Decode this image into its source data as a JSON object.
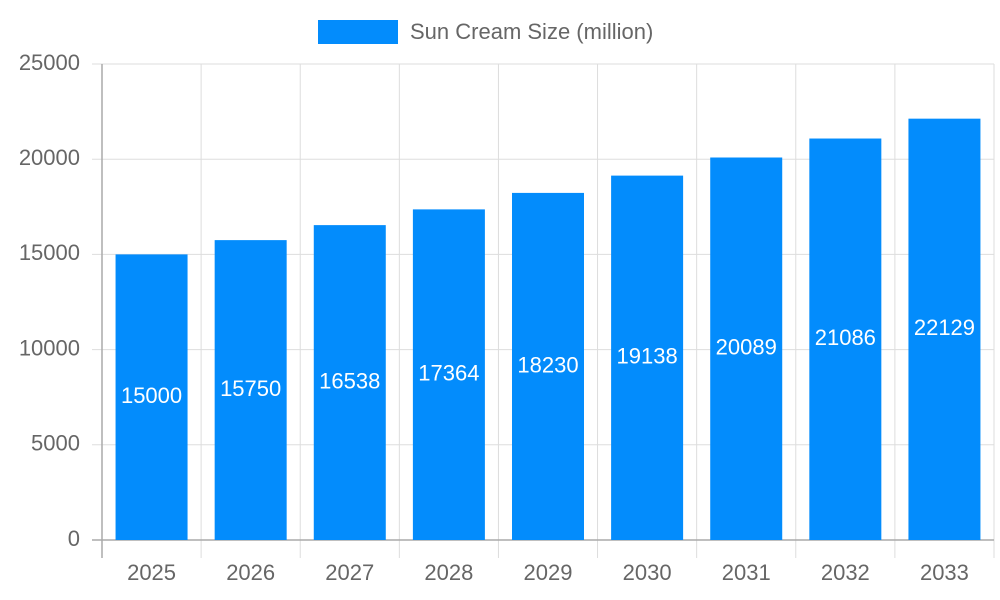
{
  "chart_data": {
    "type": "bar",
    "categories": [
      "2025",
      "2026",
      "2027",
      "2028",
      "2029",
      "2030",
      "2031",
      "2032",
      "2033"
    ],
    "series": [
      {
        "name": "Sun Cream Size (million)",
        "color": "#038cfc",
        "values": [
          15000,
          15750,
          16538,
          17364,
          18230,
          19138,
          20089,
          21086,
          22129
        ]
      }
    ],
    "ylim": [
      0,
      25000
    ],
    "yticks": [
      0,
      5000,
      10000,
      15000,
      20000,
      25000
    ],
    "grid": true,
    "legend": "top",
    "data_labels": true
  }
}
